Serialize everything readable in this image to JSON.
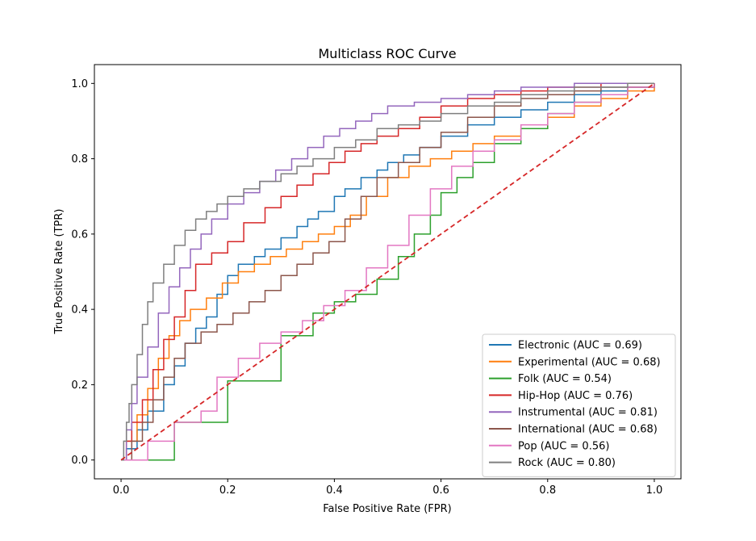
{
  "chart_data": {
    "type": "line",
    "title": "Multiclass ROC Curve",
    "xlabel": "False Positive Rate (FPR)",
    "ylabel": "True Positive Rate (TPR)",
    "xlim": [
      -0.05,
      1.05
    ],
    "ylim": [
      -0.05,
      1.05
    ],
    "xticks": [
      0.0,
      0.2,
      0.4,
      0.6,
      0.8,
      1.0
    ],
    "xtick_labels": [
      "0.0",
      "0.2",
      "0.4",
      "0.6",
      "0.8",
      "1.0"
    ],
    "yticks": [
      0.0,
      0.2,
      0.4,
      0.6,
      0.8,
      1.0
    ],
    "ytick_labels": [
      "0.0",
      "0.2",
      "0.4",
      "0.6",
      "0.8",
      "1.0"
    ],
    "grid": false,
    "legend_position": "bottom-right",
    "reference_line": {
      "x": [
        0,
        1
      ],
      "y": [
        0,
        1
      ],
      "color": "#d62728",
      "style": "dashed"
    },
    "series": [
      {
        "name": "Electronic (AUC = 0.69)",
        "color": "#1f77b4",
        "x": [
          0.0,
          0.01,
          0.03,
          0.05,
          0.08,
          0.1,
          0.12,
          0.14,
          0.16,
          0.18,
          0.2,
          0.22,
          0.25,
          0.27,
          0.3,
          0.33,
          0.35,
          0.37,
          0.4,
          0.42,
          0.45,
          0.48,
          0.5,
          0.53,
          0.56,
          0.6,
          0.65,
          0.7,
          0.75,
          0.8,
          0.85,
          0.9,
          0.95,
          1.0
        ],
        "y": [
          0.0,
          0.03,
          0.08,
          0.13,
          0.2,
          0.25,
          0.31,
          0.35,
          0.38,
          0.44,
          0.49,
          0.52,
          0.54,
          0.56,
          0.59,
          0.62,
          0.64,
          0.66,
          0.7,
          0.72,
          0.75,
          0.77,
          0.79,
          0.81,
          0.83,
          0.86,
          0.89,
          0.91,
          0.93,
          0.95,
          0.97,
          0.98,
          0.99,
          1.0
        ]
      },
      {
        "name": "Experimental (AUC = 0.68)",
        "color": "#ff7f0e",
        "x": [
          0.0,
          0.01,
          0.03,
          0.05,
          0.07,
          0.09,
          0.11,
          0.13,
          0.16,
          0.19,
          0.22,
          0.25,
          0.28,
          0.31,
          0.34,
          0.37,
          0.4,
          0.43,
          0.46,
          0.5,
          0.54,
          0.58,
          0.62,
          0.66,
          0.7,
          0.75,
          0.8,
          0.85,
          0.9,
          0.95,
          1.0
        ],
        "y": [
          0.0,
          0.05,
          0.12,
          0.19,
          0.27,
          0.33,
          0.37,
          0.4,
          0.43,
          0.47,
          0.5,
          0.52,
          0.54,
          0.56,
          0.58,
          0.6,
          0.62,
          0.65,
          0.7,
          0.75,
          0.78,
          0.8,
          0.82,
          0.84,
          0.86,
          0.88,
          0.91,
          0.94,
          0.96,
          0.98,
          1.0
        ]
      },
      {
        "name": "Folk (AUC = 0.54)",
        "color": "#2ca02c",
        "x": [
          0.0,
          0.1,
          0.2,
          0.3,
          0.36,
          0.4,
          0.44,
          0.48,
          0.52,
          0.55,
          0.58,
          0.6,
          0.63,
          0.66,
          0.7,
          0.75,
          0.8,
          0.85,
          0.9,
          0.95,
          1.0
        ],
        "y": [
          0.0,
          0.1,
          0.21,
          0.33,
          0.39,
          0.42,
          0.44,
          0.48,
          0.54,
          0.6,
          0.65,
          0.71,
          0.75,
          0.79,
          0.84,
          0.88,
          0.92,
          0.95,
          0.97,
          0.99,
          1.0
        ]
      },
      {
        "name": "Hip-Hop (AUC = 0.76)",
        "color": "#d62728",
        "x": [
          0.0,
          0.01,
          0.02,
          0.04,
          0.06,
          0.08,
          0.1,
          0.12,
          0.14,
          0.17,
          0.2,
          0.23,
          0.27,
          0.3,
          0.33,
          0.36,
          0.39,
          0.42,
          0.45,
          0.48,
          0.52,
          0.56,
          0.6,
          0.65,
          0.7,
          0.75,
          0.8,
          0.85,
          0.9,
          0.95,
          1.0
        ],
        "y": [
          0.0,
          0.05,
          0.1,
          0.16,
          0.24,
          0.32,
          0.38,
          0.45,
          0.52,
          0.55,
          0.58,
          0.63,
          0.67,
          0.7,
          0.73,
          0.76,
          0.79,
          0.82,
          0.84,
          0.86,
          0.88,
          0.91,
          0.94,
          0.96,
          0.97,
          0.98,
          0.99,
          0.99,
          1.0,
          1.0,
          1.0
        ]
      },
      {
        "name": "Instrumental (AUC = 0.81)",
        "color": "#9467bd",
        "x": [
          0.0,
          0.01,
          0.02,
          0.03,
          0.05,
          0.07,
          0.09,
          0.11,
          0.13,
          0.15,
          0.17,
          0.2,
          0.23,
          0.26,
          0.29,
          0.32,
          0.35,
          0.38,
          0.41,
          0.44,
          0.47,
          0.5,
          0.55,
          0.6,
          0.65,
          0.7,
          0.75,
          0.8,
          0.85,
          0.9,
          0.95,
          1.0
        ],
        "y": [
          0.0,
          0.08,
          0.15,
          0.22,
          0.3,
          0.39,
          0.46,
          0.51,
          0.56,
          0.6,
          0.64,
          0.68,
          0.71,
          0.74,
          0.77,
          0.8,
          0.83,
          0.86,
          0.88,
          0.9,
          0.92,
          0.94,
          0.95,
          0.96,
          0.97,
          0.98,
          0.99,
          0.99,
          1.0,
          1.0,
          1.0,
          1.0
        ]
      },
      {
        "name": "International (AUC = 0.68)",
        "color": "#8c564b",
        "x": [
          0.0,
          0.02,
          0.04,
          0.06,
          0.08,
          0.1,
          0.12,
          0.15,
          0.18,
          0.21,
          0.24,
          0.27,
          0.3,
          0.33,
          0.36,
          0.39,
          0.42,
          0.45,
          0.48,
          0.52,
          0.56,
          0.6,
          0.65,
          0.7,
          0.75,
          0.8,
          0.85,
          0.9,
          0.95,
          1.0
        ],
        "y": [
          0.0,
          0.05,
          0.1,
          0.16,
          0.22,
          0.27,
          0.31,
          0.34,
          0.36,
          0.39,
          0.42,
          0.45,
          0.49,
          0.52,
          0.55,
          0.58,
          0.64,
          0.7,
          0.75,
          0.79,
          0.83,
          0.87,
          0.91,
          0.94,
          0.96,
          0.97,
          0.98,
          0.99,
          0.99,
          1.0
        ]
      },
      {
        "name": "Pop (AUC = 0.56)",
        "color": "#e377c2",
        "x": [
          0.0,
          0.05,
          0.1,
          0.15,
          0.18,
          0.22,
          0.26,
          0.3,
          0.34,
          0.38,
          0.42,
          0.46,
          0.5,
          0.54,
          0.58,
          0.62,
          0.66,
          0.7,
          0.75,
          0.8,
          0.85,
          0.9,
          0.95,
          1.0
        ],
        "y": [
          0.0,
          0.05,
          0.1,
          0.13,
          0.22,
          0.27,
          0.31,
          0.34,
          0.37,
          0.41,
          0.45,
          0.51,
          0.57,
          0.65,
          0.72,
          0.78,
          0.82,
          0.85,
          0.89,
          0.92,
          0.95,
          0.97,
          0.99,
          1.0
        ]
      },
      {
        "name": "Rock (AUC = 0.80)",
        "color": "#7f7f7f",
        "x": [
          0.0,
          0.005,
          0.01,
          0.015,
          0.02,
          0.03,
          0.04,
          0.05,
          0.06,
          0.08,
          0.1,
          0.12,
          0.14,
          0.16,
          0.18,
          0.2,
          0.23,
          0.26,
          0.3,
          0.33,
          0.36,
          0.4,
          0.44,
          0.48,
          0.52,
          0.56,
          0.6,
          0.65,
          0.7,
          0.75,
          0.8,
          0.85,
          0.9,
          0.95,
          1.0
        ],
        "y": [
          0.0,
          0.05,
          0.1,
          0.15,
          0.2,
          0.28,
          0.36,
          0.42,
          0.47,
          0.52,
          0.57,
          0.61,
          0.64,
          0.66,
          0.68,
          0.7,
          0.72,
          0.74,
          0.76,
          0.78,
          0.8,
          0.83,
          0.85,
          0.88,
          0.89,
          0.9,
          0.92,
          0.94,
          0.95,
          0.97,
          0.98,
          0.99,
          0.99,
          1.0,
          1.0
        ]
      }
    ]
  }
}
